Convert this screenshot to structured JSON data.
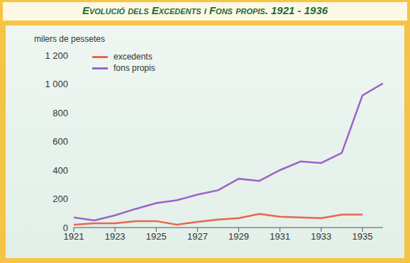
{
  "chart_data": {
    "type": "line",
    "title": "Evolució dels Excedents i Fons propis. 1921 - 1936",
    "y_label": "milers de pessetes",
    "x": [
      1921,
      1922,
      1923,
      1924,
      1925,
      1926,
      1927,
      1928,
      1929,
      1930,
      1931,
      1932,
      1933,
      1934,
      1935,
      1936
    ],
    "series": [
      {
        "name": "excedents",
        "color": "#e8654f",
        "values": [
          20,
          30,
          30,
          45,
          45,
          20,
          40,
          55,
          65,
          95,
          75,
          70,
          65,
          90,
          90,
          null
        ]
      },
      {
        "name": "fons propis",
        "color": "#9b63c8",
        "values": [
          70,
          50,
          85,
          130,
          170,
          190,
          230,
          260,
          340,
          325,
          400,
          460,
          450,
          520,
          920,
          1005
        ]
      }
    ],
    "xlim": [
      1921,
      1936
    ],
    "xticks": [
      1921,
      1923,
      1925,
      1927,
      1929,
      1931,
      1933,
      1935
    ],
    "ylim": [
      0,
      1200
    ],
    "yticks": [
      0,
      200,
      400,
      600,
      800,
      {
        "value": 1000,
        "label": "1 000"
      },
      {
        "value": 1200,
        "label": "1 200"
      }
    ],
    "grid": false,
    "legend": "upper left"
  }
}
